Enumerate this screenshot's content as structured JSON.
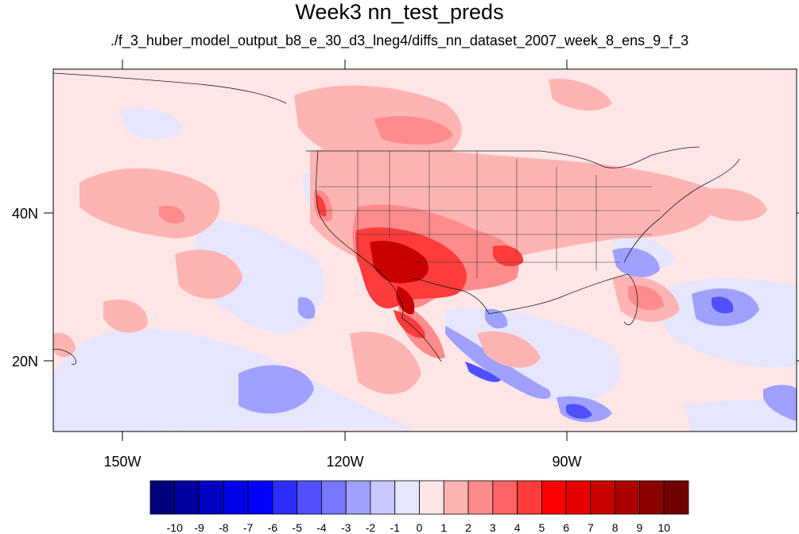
{
  "title": "Week3 nn_test_preds",
  "subtitle": "./f_3_huber_model_output_b8_e_30_d3_lneg4/diffs_nn_dataset_2007_week_8_ens_9_f_3",
  "map": {
    "lon_labels": [
      "150W",
      "120W",
      "90W"
    ],
    "lat_labels": [
      "40N",
      "20N"
    ]
  },
  "colorbar": {
    "labels": [
      "-10",
      "-9",
      "-8",
      "-7",
      "-6",
      "-5",
      "-4",
      "-3",
      "-2",
      "-1",
      "0",
      "1",
      "2",
      "3",
      "4",
      "5",
      "6",
      "7",
      "8",
      "9",
      "10"
    ],
    "colors": [
      "#00007d",
      "#0000a0",
      "#0000c4",
      "#0000e6",
      "#0000ff",
      "#2d2dff",
      "#5050ff",
      "#7878ff",
      "#a0a0ff",
      "#c8c8ff",
      "#e6e6ff",
      "#ffe6e6",
      "#ffb4b4",
      "#ff8c8c",
      "#ff6464",
      "#ff3c3c",
      "#ff0000",
      "#e60000",
      "#c80000",
      "#aa0000",
      "#8c0000",
      "#730000"
    ]
  }
}
